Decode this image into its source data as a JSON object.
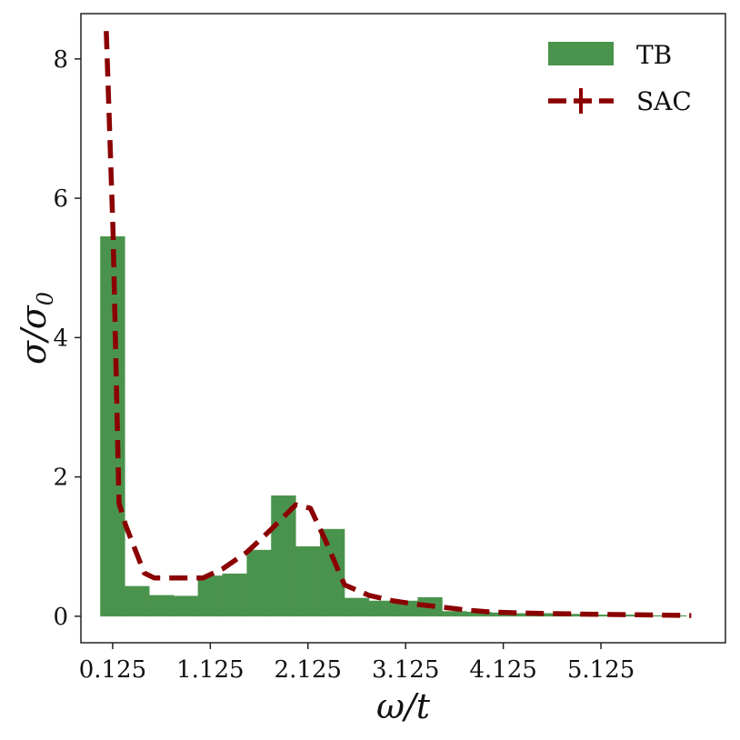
{
  "chart_data": {
    "type": "bar",
    "xlabel": "ω/t",
    "ylabel": "σ/σ",
    "ylabel_sub": "0",
    "xlim": [
      -0.2,
      6.4
    ],
    "ylim": [
      -0.38,
      8.65
    ],
    "x_ticks": [
      0.125,
      1.125,
      2.125,
      3.125,
      4.125,
      5.125
    ],
    "x_tick_labels": [
      "0.125",
      "1.125",
      "2.125",
      "3.125",
      "4.125",
      "5.125"
    ],
    "y_ticks": [
      0,
      2,
      4,
      6,
      8
    ],
    "y_tick_labels": [
      "0",
      "2",
      "4",
      "6",
      "8"
    ],
    "grid": false,
    "legend_position": "top-right",
    "colors": {
      "TB": "#4a934d",
      "SAC": "#8b0000"
    },
    "series": [
      {
        "name": "TB",
        "kind": "bar",
        "bin_width": 0.25,
        "bin_start": [
          0.0,
          0.25,
          0.5,
          0.75,
          1.0,
          1.25,
          1.5,
          1.75,
          2.0,
          2.25,
          2.5,
          2.75,
          3.0,
          3.25,
          3.5,
          3.75,
          4.0,
          4.25,
          4.5,
          4.75,
          5.0,
          5.25,
          5.5,
          5.75
        ],
        "values": [
          5.45,
          0.43,
          0.3,
          0.29,
          0.58,
          0.61,
          0.95,
          1.73,
          1.0,
          1.25,
          0.26,
          0.22,
          0.22,
          0.27,
          0.07,
          0.06,
          0.05,
          0.04,
          0.04,
          0.03,
          0.02,
          0.02,
          0.01,
          0.01
        ]
      },
      {
        "name": "SAC",
        "kind": "line",
        "x": [
          0.06,
          0.13,
          0.19,
          0.26,
          0.45,
          0.55,
          1.05,
          1.25,
          1.5,
          1.75,
          2.0,
          2.15,
          2.3,
          2.5,
          2.75,
          3.0,
          3.25,
          3.5,
          3.75,
          4.0,
          4.5,
          5.0,
          5.5,
          6.05
        ],
        "values": [
          8.4,
          5.5,
          1.62,
          1.3,
          0.62,
          0.55,
          0.55,
          0.68,
          0.92,
          1.25,
          1.6,
          1.55,
          1.1,
          0.45,
          0.3,
          0.22,
          0.17,
          0.13,
          0.09,
          0.06,
          0.04,
          0.03,
          0.02,
          0.01
        ]
      }
    ]
  }
}
